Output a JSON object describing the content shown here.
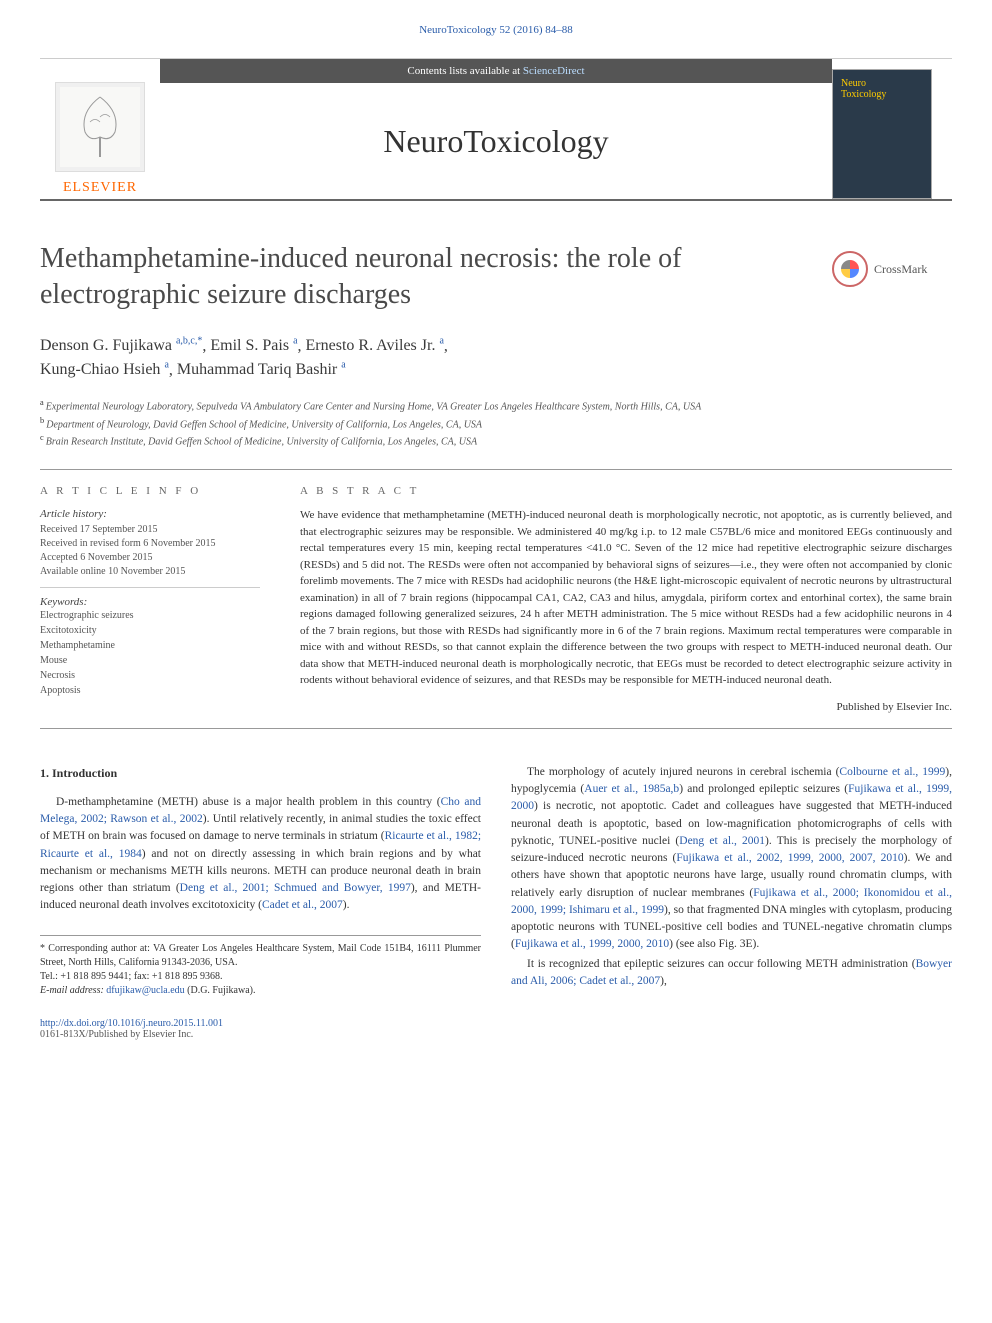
{
  "header": {
    "journal_ref": "NeuroToxicology 52 (2016) 84–88",
    "contents_prefix": "Contents lists available at ",
    "contents_link": "ScienceDirect",
    "journal_title": "NeuroToxicology",
    "publisher_name": "ELSEVIER",
    "cover_label": "Neuro\nToxicology",
    "crossmark": "CrossMark"
  },
  "article": {
    "title": "Methamphetamine-induced neuronal necrosis: the role of electrographic seizure discharges",
    "authors_html": "Denson G. Fujikawa",
    "authors": [
      {
        "name": "Denson G. Fujikawa",
        "sup": "a,b,c,*"
      },
      {
        "name": "Emil S. Pais",
        "sup": "a"
      },
      {
        "name": "Ernesto R. Aviles Jr.",
        "sup": "a"
      },
      {
        "name": "Kung-Chiao Hsieh",
        "sup": "a"
      },
      {
        "name": "Muhammad Tariq Bashir",
        "sup": "a"
      }
    ],
    "affiliations": [
      {
        "sup": "a",
        "text": "Experimental Neurology Laboratory, Sepulveda VA Ambulatory Care Center and Nursing Home, VA Greater Los Angeles Healthcare System, North Hills, CA, USA"
      },
      {
        "sup": "b",
        "text": "Department of Neurology, David Geffen School of Medicine, University of California, Los Angeles, CA, USA"
      },
      {
        "sup": "c",
        "text": "Brain Research Institute, David Geffen School of Medicine, University of California, Los Angeles, CA, USA"
      }
    ]
  },
  "info": {
    "heading": "A R T I C L E   I N F O",
    "history_label": "Article history:",
    "history": [
      "Received 17 September 2015",
      "Received in revised form 6 November 2015",
      "Accepted 6 November 2015",
      "Available online 10 November 2015"
    ],
    "keywords_label": "Keywords:",
    "keywords": [
      "Electrographic seizures",
      "Excitotoxicity",
      "Methamphetamine",
      "Mouse",
      "Necrosis",
      "Apoptosis"
    ]
  },
  "abstract": {
    "heading": "A B S T R A C T",
    "text": "We have evidence that methamphetamine (METH)-induced neuronal death is morphologically necrotic, not apoptotic, as is currently believed, and that electrographic seizures may be responsible. We administered 40 mg/kg i.p. to 12 male C57BL/6 mice and monitored EEGs continuously and rectal temperatures every 15 min, keeping rectal temperatures <41.0 °C. Seven of the 12 mice had repetitive electrographic seizure discharges (RESDs) and 5 did not. The RESDs were often not accompanied by behavioral signs of seizures—i.e., they were often not accompanied by clonic forelimb movements. The 7 mice with RESDs had acidophilic neurons (the H&E light-microscopic equivalent of necrotic neurons by ultrastructural examination) in all of 7 brain regions (hippocampal CA1, CA2, CA3 and hilus, amygdala, piriform cortex and entorhinal cortex), the same brain regions damaged following generalized seizures, 24 h after METH administration. The 5 mice without RESDs had a few acidophilic neurons in 4 of the 7 brain regions, but those with RESDs had significantly more in 6 of the 7 brain regions. Maximum rectal temperatures were comparable in mice with and without RESDs, so that cannot explain the difference between the two groups with respect to METH-induced neuronal death. Our data show that METH-induced neuronal death is morphologically necrotic, that EEGs must be recorded to detect electrographic seizure activity in rodents without behavioral evidence of seizures, and that RESDs may be responsible for METH-induced neuronal death.",
    "published_by": "Published by Elsevier Inc."
  },
  "body": {
    "intro_heading": "1. Introduction",
    "col1_p1": "D-methamphetamine (METH) abuse is a major health problem in this country (Cho and Melega, 2002; Rawson et al., 2002). Until relatively recently, in animal studies the toxic effect of METH on brain was focused on damage to nerve terminals in striatum (Ricaurte et al., 1982; Ricaurte et al., 1984) and not on directly assessing in which brain regions and by what mechanism or mechanisms METH kills neurons. METH can produce neuronal death in brain regions other than striatum (Deng et al., 2001; Schmued and Bowyer, 1997), and METH-induced neuronal death involves excitotoxicity (Cadet et al., 2007).",
    "col2_p1": "The morphology of acutely injured neurons in cerebral ischemia (Colbourne et al., 1999), hypoglycemia (Auer et al., 1985a,b) and prolonged epileptic seizures (Fujikawa et al., 1999, 2000) is necrotic, not apoptotic. Cadet and colleagues have suggested that METH-induced neuronal death is apoptotic, based on low-magnification photomicrographs of cells with pyknotic, TUNEL-positive nuclei (Deng et al., 2001). This is precisely the morphology of seizure-induced necrotic neurons (Fujikawa et al., 2002, 1999, 2000, 2007, 2010). We and others have shown that apoptotic neurons have large, usually round chromatin clumps, with relatively early disruption of nuclear membranes (Fujikawa et al., 2000; Ikonomidou et al., 2000, 1999; Ishimaru et al., 1999), so that fragmented DNA mingles with cytoplasm, producing apoptotic neurons with TUNEL-positive cell bodies and TUNEL-negative chromatin clumps (Fujikawa et al., 1999, 2000, 2010) (see also Fig. 3E).",
    "col2_p2": "It is recognized that epileptic seizures can occur following METH administration (Bowyer and Ali, 2006; Cadet et al., 2007),"
  },
  "footnote": {
    "corr": "* Corresponding author at: VA Greater Los Angeles Healthcare System, Mail Code 151B4, 16111 Plummer Street, North Hills, California 91343-2036, USA.",
    "tel": "Tel.: +1 818 895 9441; fax: +1 818 895 9368.",
    "email_label": "E-mail address: ",
    "email": "dfujikaw@ucla.edu",
    "email_suffix": " (D.G. Fujikawa)."
  },
  "footer": {
    "doi": "http://dx.doi.org/10.1016/j.neuro.2015.11.001",
    "copyright": "0161-813X/Published by Elsevier Inc."
  },
  "colors": {
    "link": "#2a5caa",
    "publisher_orange": "#ff6600",
    "text": "#333333",
    "band_bg": "#555555"
  }
}
